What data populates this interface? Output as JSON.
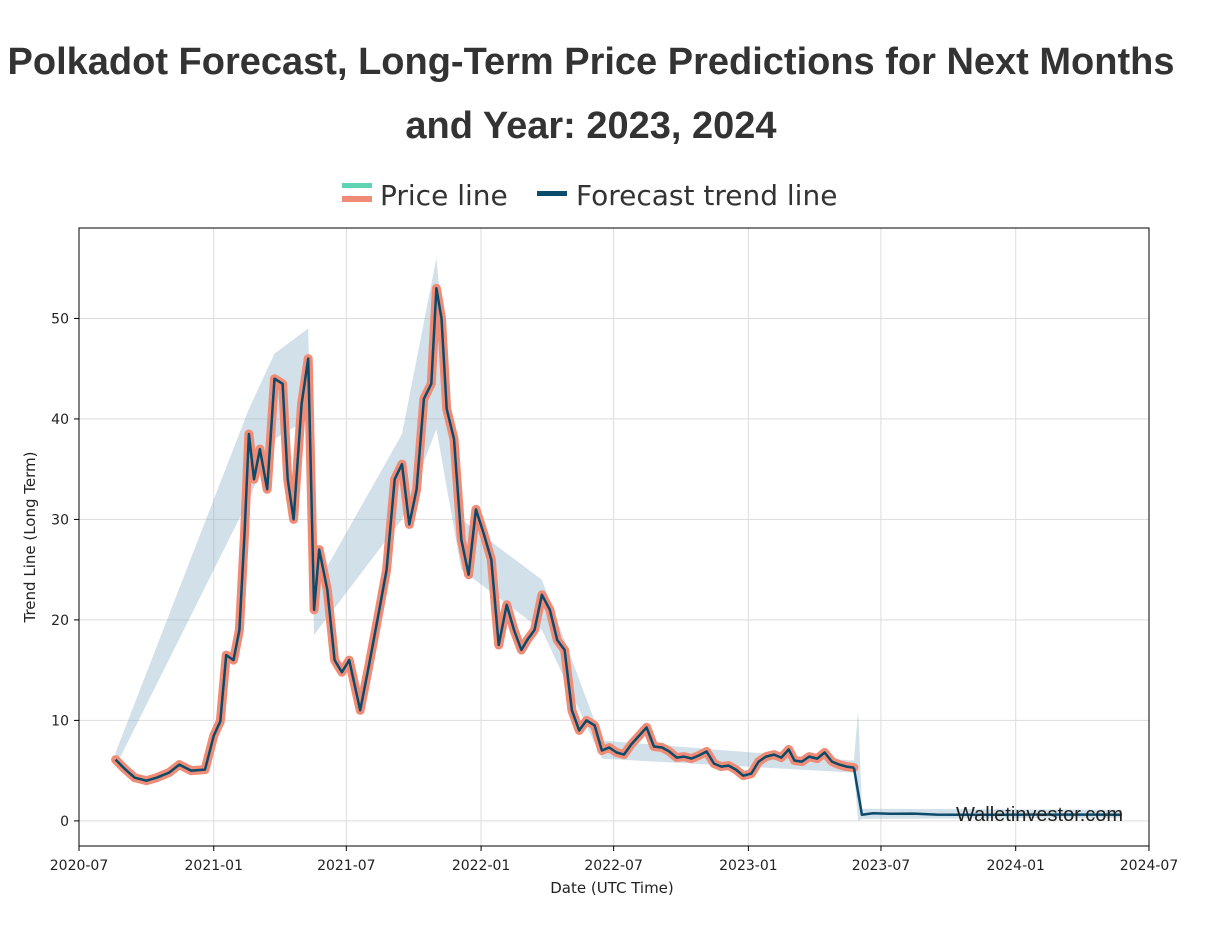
{
  "page": {
    "title_part1": "Polkadot",
    "title_part2": " Forecast, ",
    "title_part3": "Long-Term",
    "title_part4": " Price Predictions for Next Months and Year: 2023, 2024"
  },
  "colors": {
    "price_line": "#f08c75",
    "price_line_legend_top": "#5fd3b3",
    "forecast_line": "#0b4a6b",
    "band": "#7fa6c0",
    "grid": "#dddddd"
  },
  "chart_data": {
    "type": "line",
    "xlabel": "Date (UTC Time)",
    "ylabel": "Trend Line (Long Term)",
    "xlim": [
      "2020-07-01",
      "2024-07-01"
    ],
    "ylim": [
      -2.5,
      59
    ],
    "x_ticks": [
      "2020-07",
      "2021-01",
      "2021-07",
      "2022-01",
      "2022-07",
      "2023-01",
      "2023-07",
      "2024-01",
      "2024-07"
    ],
    "y_ticks": [
      0,
      10,
      20,
      30,
      40,
      50
    ],
    "grid": true,
    "legend_position": "top",
    "watermark": "Walletinvestor.com",
    "series": [
      {
        "name": "Price line",
        "points": [
          [
            "2020-08-20",
            6.1
          ],
          [
            "2020-09-01",
            5.2
          ],
          [
            "2020-09-15",
            4.3
          ],
          [
            "2020-10-01",
            4.0
          ],
          [
            "2020-10-15",
            4.3
          ],
          [
            "2020-11-01",
            4.8
          ],
          [
            "2020-11-15",
            5.6
          ],
          [
            "2020-12-01",
            5.0
          ],
          [
            "2020-12-20",
            5.1
          ],
          [
            "2021-01-01",
            8.5
          ],
          [
            "2021-01-10",
            9.9
          ],
          [
            "2021-01-18",
            16.5
          ],
          [
            "2021-01-28",
            16.0
          ],
          [
            "2021-02-05",
            19.0
          ],
          [
            "2021-02-12",
            28.5
          ],
          [
            "2021-02-18",
            38.5
          ],
          [
            "2021-02-25",
            34.0
          ],
          [
            "2021-03-05",
            37.0
          ],
          [
            "2021-03-15",
            33.0
          ],
          [
            "2021-03-25",
            44.0
          ],
          [
            "2021-04-05",
            43.5
          ],
          [
            "2021-04-12",
            34.0
          ],
          [
            "2021-04-20",
            30.0
          ],
          [
            "2021-05-01",
            41.5
          ],
          [
            "2021-05-10",
            46.0
          ],
          [
            "2021-05-18",
            21.0
          ],
          [
            "2021-05-25",
            27.0
          ],
          [
            "2021-06-05",
            23.0
          ],
          [
            "2021-06-15",
            16.0
          ],
          [
            "2021-06-25",
            14.8
          ],
          [
            "2021-07-05",
            16.0
          ],
          [
            "2021-07-20",
            11.0
          ],
          [
            "2021-08-01",
            15.5
          ],
          [
            "2021-08-15",
            21.0
          ],
          [
            "2021-08-25",
            25.0
          ],
          [
            "2021-09-05",
            34.0
          ],
          [
            "2021-09-15",
            35.5
          ],
          [
            "2021-09-25",
            29.5
          ],
          [
            "2021-10-05",
            33.0
          ],
          [
            "2021-10-15",
            42.0
          ],
          [
            "2021-10-25",
            43.5
          ],
          [
            "2021-11-01",
            53.0
          ],
          [
            "2021-11-08",
            50.0
          ],
          [
            "2021-11-15",
            41.0
          ],
          [
            "2021-11-25",
            38.0
          ],
          [
            "2021-12-05",
            28.0
          ],
          [
            "2021-12-15",
            24.5
          ],
          [
            "2021-12-25",
            31.0
          ],
          [
            "2022-01-05",
            28.5
          ],
          [
            "2022-01-15",
            26.0
          ],
          [
            "2022-01-25",
            17.5
          ],
          [
            "2022-02-05",
            21.5
          ],
          [
            "2022-02-15",
            19.0
          ],
          [
            "2022-02-25",
            17.0
          ],
          [
            "2022-03-05",
            18.0
          ],
          [
            "2022-03-15",
            19.0
          ],
          [
            "2022-03-25",
            22.5
          ],
          [
            "2022-04-05",
            21.0
          ],
          [
            "2022-04-15",
            18.0
          ],
          [
            "2022-04-25",
            17.0
          ],
          [
            "2022-05-05",
            11.0
          ],
          [
            "2022-05-15",
            9.0
          ],
          [
            "2022-05-25",
            10.0
          ],
          [
            "2022-06-05",
            9.5
          ],
          [
            "2022-06-15",
            7.0
          ],
          [
            "2022-06-25",
            7.3
          ],
          [
            "2022-07-05",
            6.8
          ],
          [
            "2022-07-15",
            6.6
          ],
          [
            "2022-07-25",
            7.6
          ],
          [
            "2022-08-05",
            8.5
          ],
          [
            "2022-08-15",
            9.3
          ],
          [
            "2022-08-25",
            7.4
          ],
          [
            "2022-09-05",
            7.3
          ],
          [
            "2022-09-15",
            6.9
          ],
          [
            "2022-09-25",
            6.3
          ],
          [
            "2022-10-05",
            6.4
          ],
          [
            "2022-10-15",
            6.2
          ],
          [
            "2022-10-25",
            6.5
          ],
          [
            "2022-11-05",
            6.9
          ],
          [
            "2022-11-15",
            5.7
          ],
          [
            "2022-11-25",
            5.4
          ],
          [
            "2022-12-05",
            5.5
          ],
          [
            "2022-12-15",
            5.1
          ],
          [
            "2022-12-25",
            4.5
          ],
          [
            "2023-01-05",
            4.7
          ],
          [
            "2023-01-15",
            5.9
          ],
          [
            "2023-01-25",
            6.4
          ],
          [
            "2023-02-05",
            6.6
          ],
          [
            "2023-02-15",
            6.3
          ],
          [
            "2023-02-25",
            7.1
          ],
          [
            "2023-03-05",
            6.0
          ],
          [
            "2023-03-15",
            5.9
          ],
          [
            "2023-03-25",
            6.4
          ],
          [
            "2023-04-05",
            6.2
          ],
          [
            "2023-04-15",
            6.8
          ],
          [
            "2023-04-25",
            5.9
          ],
          [
            "2023-05-05",
            5.6
          ],
          [
            "2023-05-15",
            5.4
          ],
          [
            "2023-05-25",
            5.3
          ]
        ]
      },
      {
        "name": "Forecast trend line",
        "points": [
          [
            "2023-05-25",
            5.3
          ],
          [
            "2023-06-05",
            0.6
          ],
          [
            "2023-06-20",
            0.75
          ],
          [
            "2023-07-15",
            0.7
          ],
          [
            "2023-08-15",
            0.72
          ],
          [
            "2023-09-15",
            0.62
          ],
          [
            "2023-10-15",
            0.6
          ],
          [
            "2023-11-15",
            0.6
          ],
          [
            "2023-12-15",
            0.6
          ],
          [
            "2024-01-15",
            0.62
          ],
          [
            "2024-02-15",
            0.62
          ],
          [
            "2024-03-15",
            0.62
          ],
          [
            "2024-04-15",
            0.62
          ],
          [
            "2024-05-25",
            0.6
          ]
        ]
      }
    ],
    "confidence_band": {
      "upper": [
        [
          "2020-08-20",
          6.8
        ],
        [
          "2021-02-18",
          41.0
        ],
        [
          "2021-03-25",
          46.5
        ],
        [
          "2021-05-10",
          49.0
        ],
        [
          "2021-05-18",
          23.0
        ],
        [
          "2021-09-15",
          38.5
        ],
        [
          "2021-11-01",
          56.0
        ],
        [
          "2021-12-05",
          30.0
        ],
        [
          "2022-03-25",
          24.0
        ],
        [
          "2022-06-15",
          8.0
        ],
        [
          "2023-05-25",
          6.0
        ],
        [
          "2023-05-31",
          11.0
        ],
        [
          "2023-06-05",
          1.2
        ],
        [
          "2024-05-25",
          1.1
        ]
      ],
      "lower": [
        [
          "2020-08-20",
          5.4
        ],
        [
          "2021-02-18",
          32.0
        ],
        [
          "2021-03-25",
          38.0
        ],
        [
          "2021-05-10",
          40.0
        ],
        [
          "2021-05-18",
          18.5
        ],
        [
          "2021-09-15",
          30.0
        ],
        [
          "2021-11-01",
          39.0
        ],
        [
          "2021-12-05",
          25.0
        ],
        [
          "2022-03-25",
          19.0
        ],
        [
          "2022-06-15",
          6.2
        ],
        [
          "2023-05-25",
          4.8
        ],
        [
          "2023-05-31",
          0.0
        ],
        [
          "2023-06-05",
          0.2
        ],
        [
          "2024-05-25",
          0.3
        ]
      ]
    }
  }
}
